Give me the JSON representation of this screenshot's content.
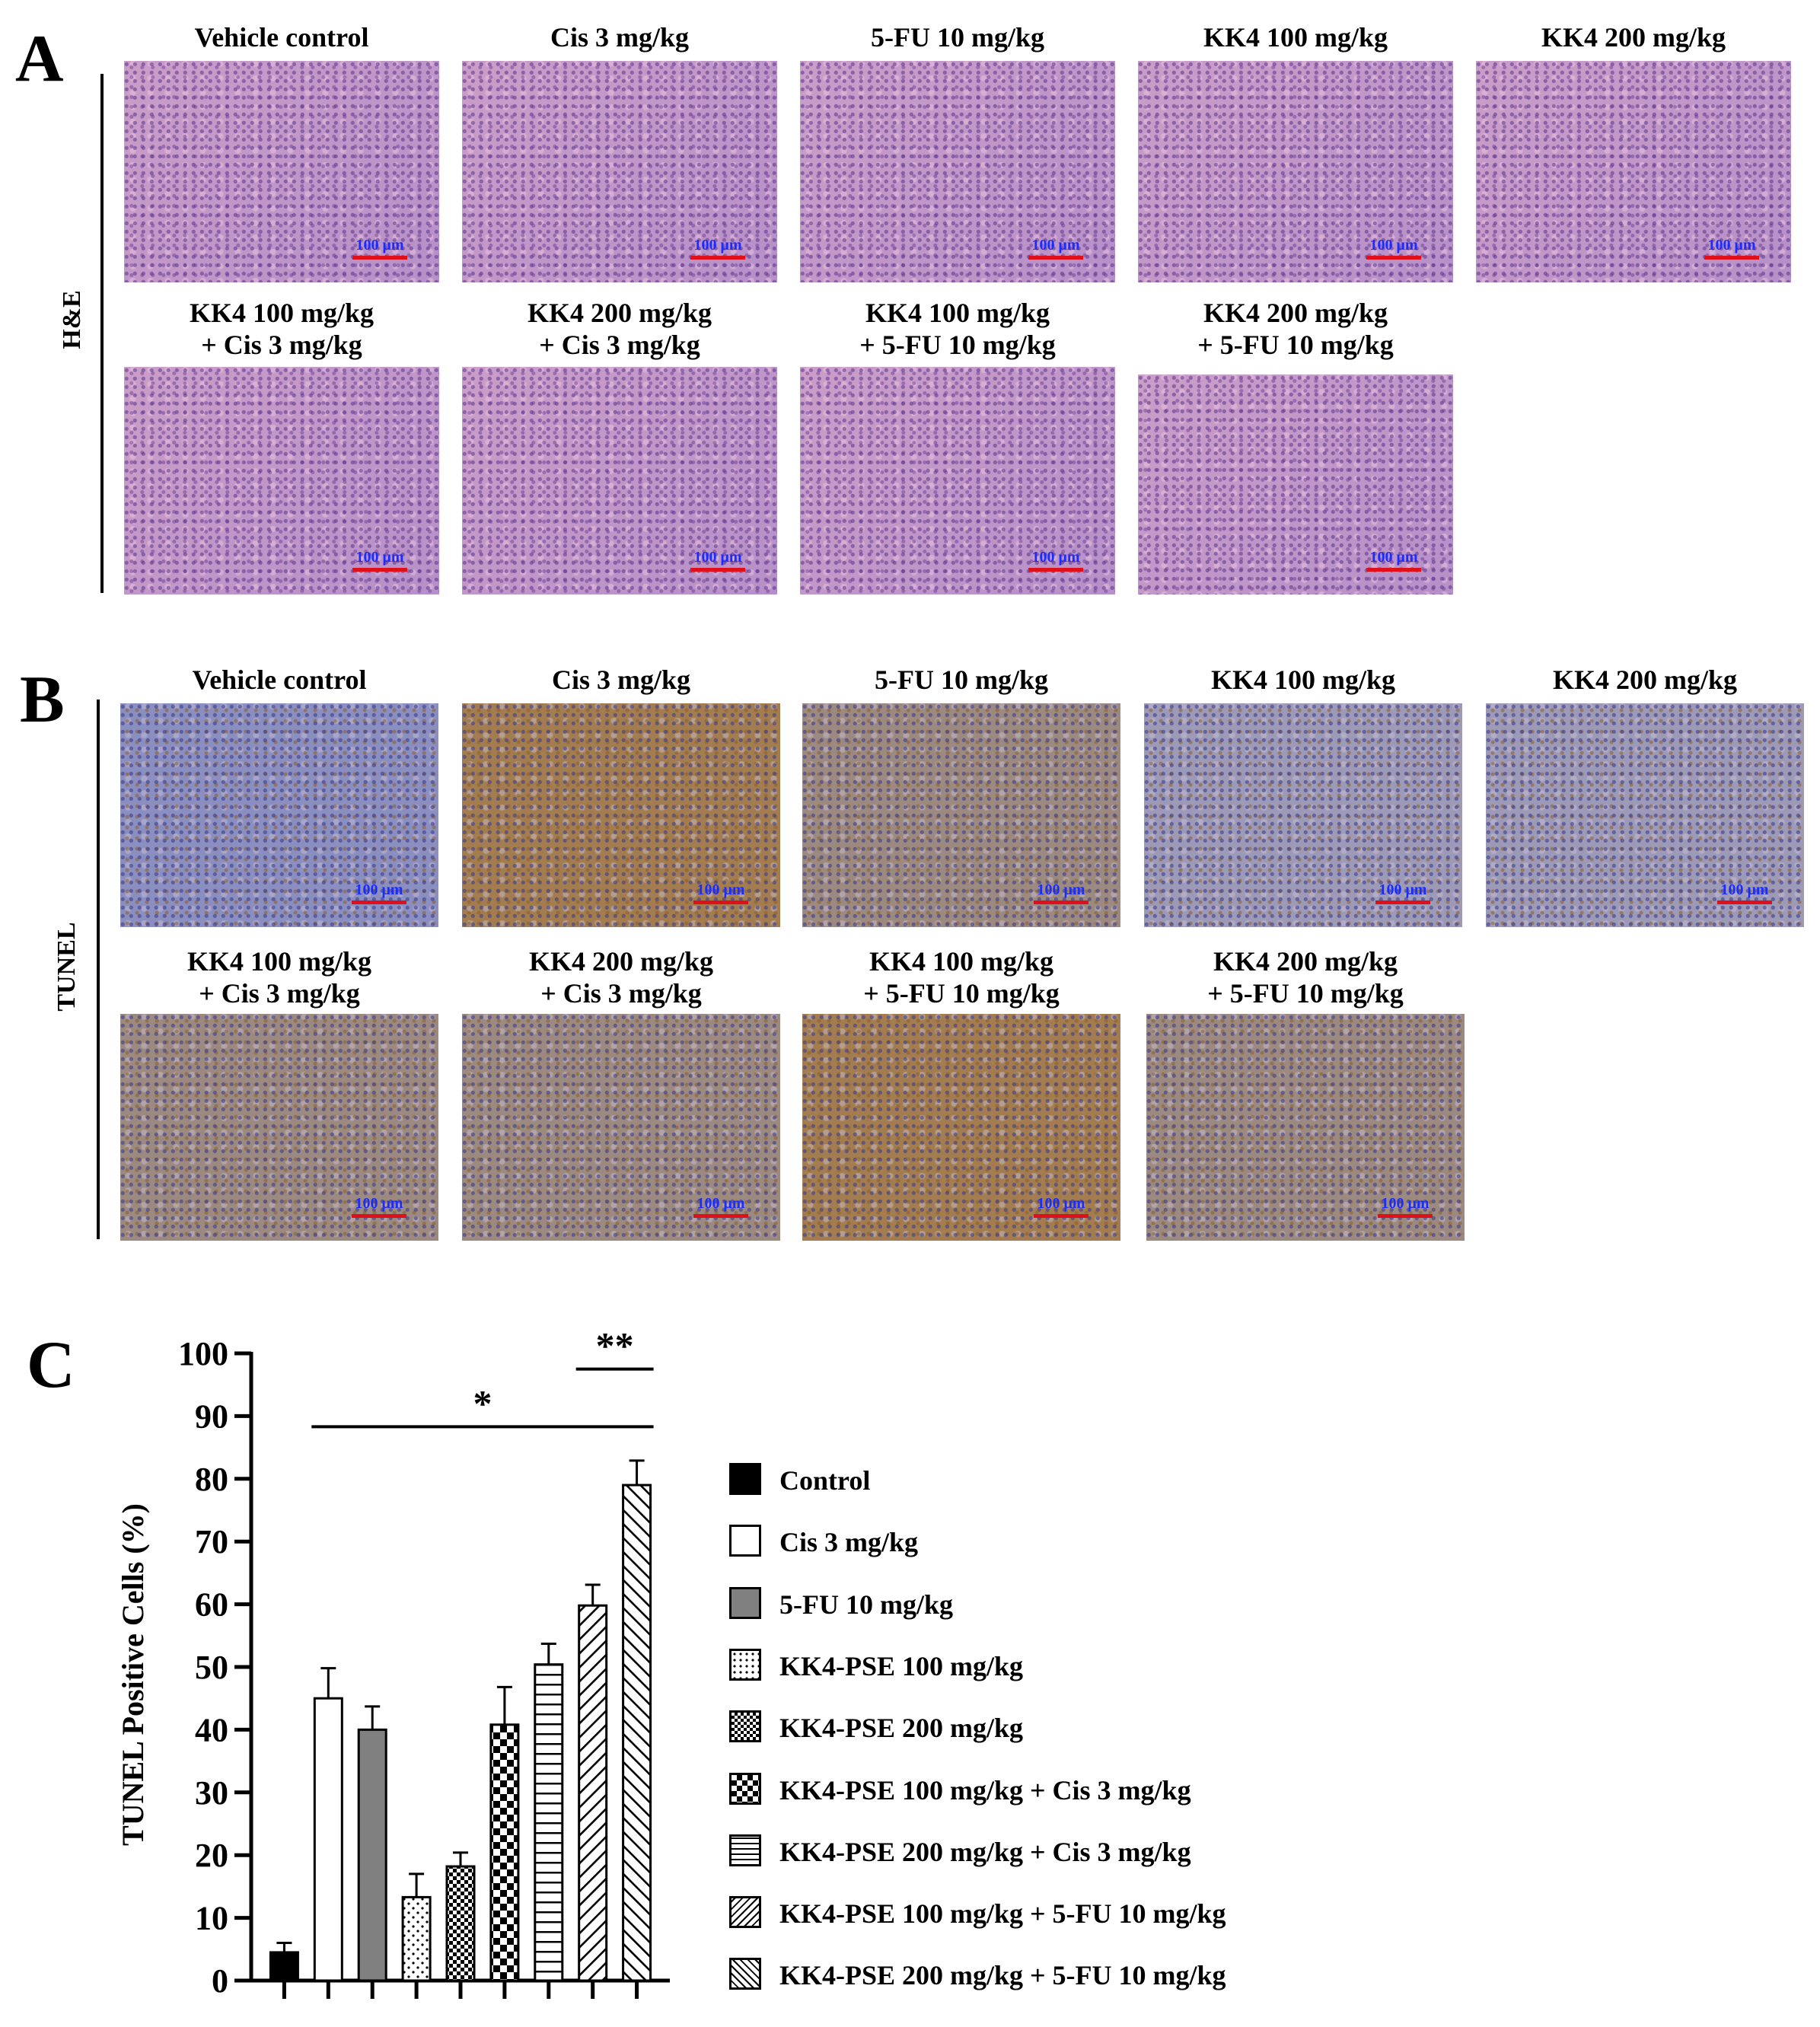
{
  "panels": {
    "A": {
      "letter": "A",
      "side_label": "H&E",
      "row1": [
        "Vehicle control",
        "Cis  3 mg/kg",
        "5-FU  10 mg/kg",
        "KK4  100 mg/kg",
        "KK4  200 mg/kg"
      ],
      "row2": [
        [
          "KK4 100 mg/kg",
          "+ Cis 3 mg/kg"
        ],
        [
          "KK4 200 mg/kg",
          "+ Cis 3 mg/kg"
        ],
        [
          "KK4 100 mg/kg",
          "+ 5-FU 10 mg/kg"
        ],
        [
          "KK4 200 mg/kg",
          "+ 5-FU 10 mg/kg"
        ]
      ]
    },
    "B": {
      "letter": "B",
      "side_label": "TUNEL",
      "row1": [
        "Vehicle control",
        "Cis 3 mg/kg",
        "5-FU 10 mg/kg",
        "KK4  100 mg/kg",
        "KK4  200 mg/kg"
      ],
      "row2": [
        [
          "KK4 100 mg/kg",
          "+ Cis 3 mg/kg"
        ],
        [
          "KK4 200 mg/kg",
          "+ Cis 3 mg/kg"
        ],
        [
          "KK4 100 mg/kg",
          "+ 5-FU 10 mg/kg"
        ],
        [
          "KK4 200 mg/kg",
          "+ 5-FU 10 mg/kg"
        ]
      ]
    },
    "C": {
      "letter": "C"
    }
  },
  "scale_bar_label": "100 μm",
  "colors": {
    "scale_text": "#1a2cff",
    "scale_bar": "#e0101a",
    "he_stain": "#c7a2cd",
    "tunel_stain": "#a37d4f"
  },
  "chart_data": {
    "type": "bar",
    "ylabel": "TUNEL Positive Cells (%)",
    "ylim": [
      0,
      100
    ],
    "yticks": [
      0,
      10,
      20,
      30,
      40,
      50,
      60,
      70,
      80,
      90,
      100
    ],
    "grid": false,
    "legend_position": "right",
    "categories": [
      "Control",
      "Cis 3 mg/kg",
      "5-FU 10 mg/kg",
      "KK4-PSE 100 mg/kg",
      "KK4-PSE 200 mg/kg",
      "KK4-PSE 100 mg/kg + Cis 3 mg/kg",
      "KK4-PSE 200 mg/kg + Cis 3 mg/kg",
      "KK4-PSE 100 mg/kg + 5-FU 10 mg/kg",
      "KK4-PSE 200 mg/kg + 5-FU 10 mg/kg"
    ],
    "values": [
      4.5,
      45,
      40,
      13.3,
      18.2,
      40.8,
      50.4,
      59.8,
      79
    ],
    "errors": [
      1.5,
      4.8,
      3.7,
      3.7,
      2.2,
      6,
      3.3,
      3.3,
      3.9
    ],
    "fills": [
      "black",
      "white",
      "gray",
      "dots",
      "checker",
      "checker-large",
      "horizontal",
      "diagonal",
      "diagonal-back"
    ],
    "annotations": [
      {
        "text": "*",
        "from": 1,
        "to": 8,
        "y": 88.3
      },
      {
        "text": "**",
        "from": 7,
        "to": 8,
        "y": 97.5
      }
    ]
  }
}
